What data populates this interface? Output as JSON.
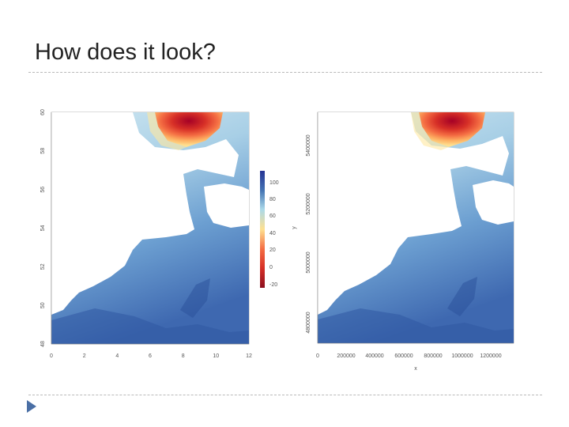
{
  "slide": {
    "title": "How does it look?"
  },
  "colors": {
    "scale": [
      "#8b0f1f",
      "#d73027",
      "#f46d43",
      "#fdae61",
      "#fee090",
      "#e0f3f8",
      "#abd9e9",
      "#74add1",
      "#4575b4",
      "#253494"
    ],
    "land": "#ffffff",
    "rule": "#b9b9b9",
    "bullet": "#4a6fa5"
  },
  "chart_data": [
    {
      "type": "heatmap",
      "title": "",
      "xlabel": "",
      "ylabel": "",
      "xlim": [
        0,
        12
      ],
      "ylim": [
        48,
        60
      ],
      "x_ticks": [
        "0",
        "2",
        "4",
        "6",
        "8",
        "10",
        "12"
      ],
      "y_ticks": [
        "48",
        "50",
        "52",
        "54",
        "56",
        "58",
        "60"
      ],
      "legend": {
        "position": "right",
        "range": [
          -20,
          100
        ],
        "ticks": [
          "100",
          "80",
          "60",
          "40",
          "20",
          "0",
          "-20"
        ]
      }
    },
    {
      "type": "heatmap",
      "title": "",
      "xlabel": "x",
      "ylabel": "y",
      "xlim": [
        0,
        1300000
      ],
      "ylim": [
        4800000,
        5800000
      ],
      "x_ticks": [
        "0",
        "200000",
        "400000",
        "600000",
        "800000",
        "1000000",
        "1200000"
      ],
      "y_ticks": [
        "4800000",
        "5000000",
        "5200000",
        "5400000"
      ]
    }
  ]
}
